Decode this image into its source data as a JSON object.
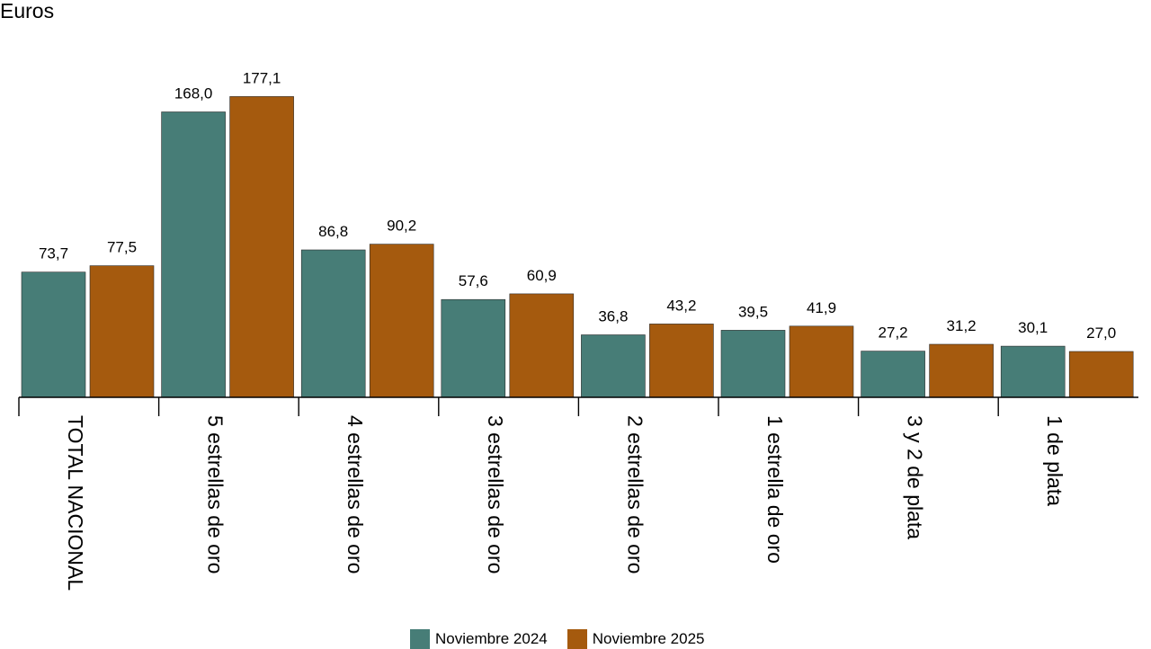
{
  "chart_data": {
    "type": "bar",
    "ylabel": "Euros",
    "categories": [
      "TOTAL NACIONAL",
      "5 estrellas de oro",
      "4 estrellas de oro",
      "3 estrellas de oro",
      "2 estrellas de oro",
      "1 estrella de oro",
      "3 y 2 de plata",
      "1 de plata"
    ],
    "series": [
      {
        "name": "Noviembre 2024",
        "color": "#477d77",
        "values": [
          73.7,
          168.0,
          86.8,
          57.6,
          36.8,
          39.5,
          27.2,
          30.1
        ],
        "labels": [
          "73,7",
          "168,0",
          "86,8",
          "57,6",
          "36,8",
          "39,5",
          "27,2",
          "30,1"
        ]
      },
      {
        "name": "Noviembre 2025",
        "color": "#a55a0e",
        "values": [
          77.5,
          177.1,
          90.2,
          60.9,
          43.2,
          41.9,
          31.2,
          27.0
        ],
        "labels": [
          "77,5",
          "177,1",
          "90,2",
          "60,9",
          "43,2",
          "41,9",
          "31,2",
          "27,0"
        ]
      }
    ],
    "grid": false,
    "legend_position": "bottom"
  }
}
